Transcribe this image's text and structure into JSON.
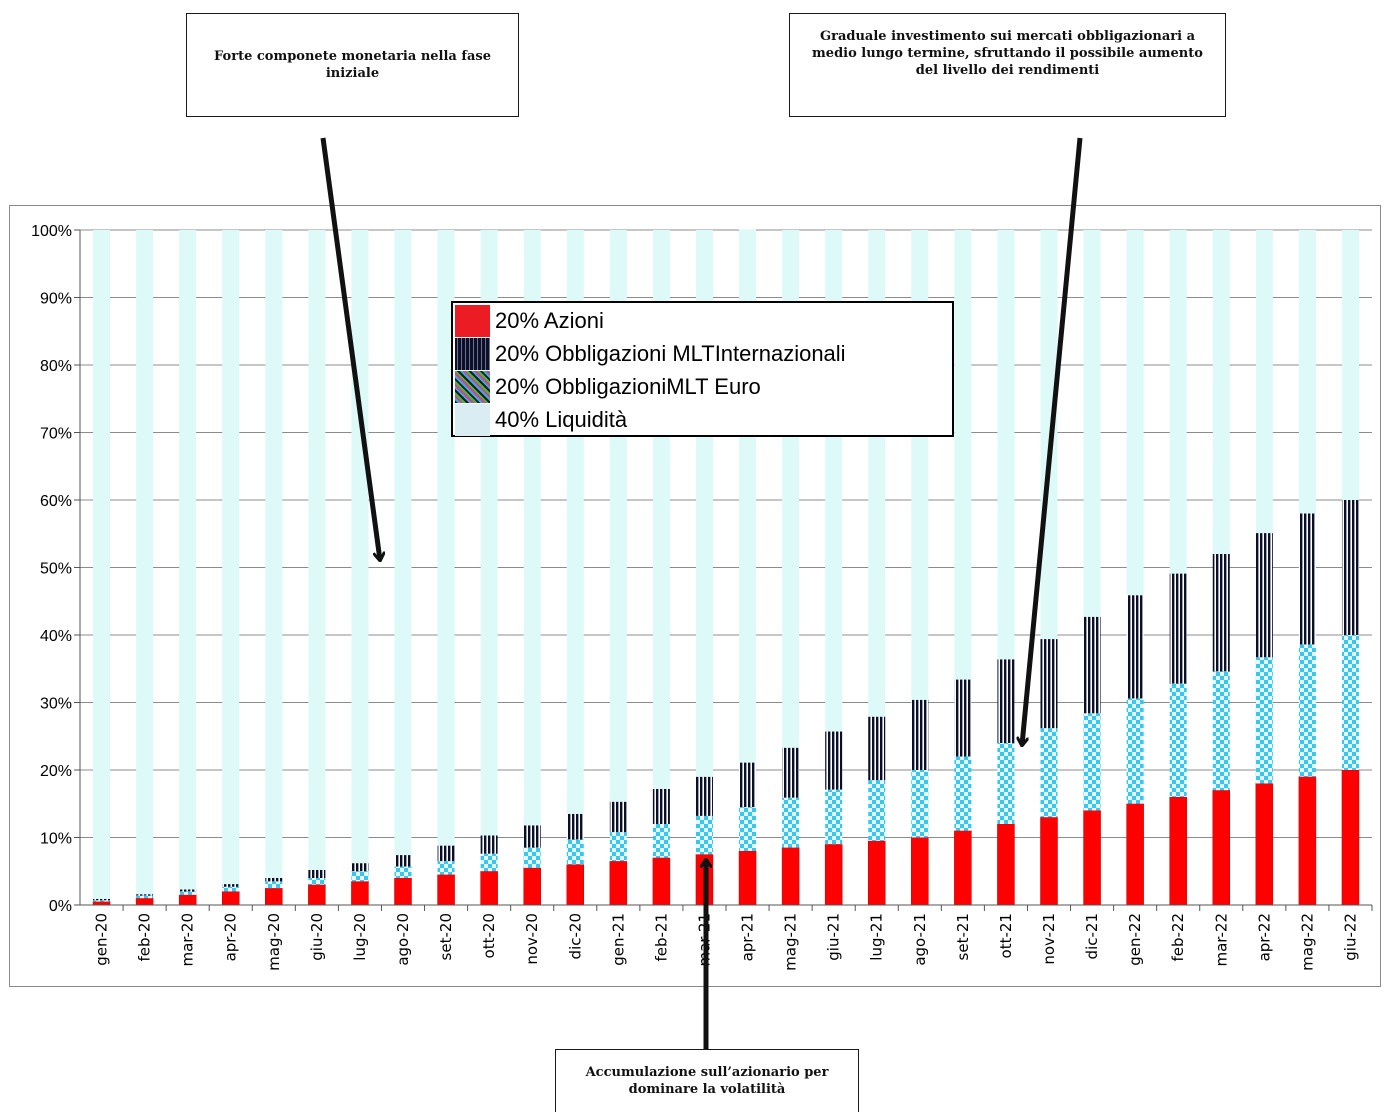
{
  "callouts": {
    "top_left": "Forte componete monetaria nella fase iniziale",
    "top_right": "Graduale investimento sui mercati obbligazionari a medio lungo termine, sfruttando il possibile aumento del livello dei rendimenti",
    "bottom": "Accumulazione sull’azionario per dominare la volatilità"
  },
  "colors": {
    "azioni": "#ff0000",
    "obbl_int": "#0b1029",
    "obbl_euro": "#35c8f0",
    "liquidita": "#ddf9f8",
    "grid": "#8c8c8c",
    "arrow": "#111111"
  },
  "chart_data": {
    "type": "bar",
    "stacked": true,
    "categories": [
      "gen-20",
      "feb-20",
      "mar-20",
      "apr-20",
      "mag-20",
      "giu-20",
      "lug-20",
      "ago-20",
      "set-20",
      "ott-20",
      "nov-20",
      "dic-20",
      "gen-21",
      "feb-21",
      "mar-21",
      "apr-21",
      "mag-21",
      "giu-21",
      "lug-21",
      "ago-21",
      "set-21",
      "ott-21",
      "nov-21",
      "dic-21",
      "gen-22",
      "feb-22",
      "mar-22",
      "apr-22",
      "mag-22",
      "giu-22"
    ],
    "series": [
      {
        "name": "20% Azioni",
        "pattern": "solid",
        "values": [
          0.5,
          1,
          1.5,
          2,
          2.5,
          3,
          3.5,
          4,
          4.5,
          5,
          5.5,
          6,
          6.5,
          7,
          7.5,
          8,
          8.5,
          9,
          9.5,
          10,
          11,
          12,
          13,
          14,
          15,
          16,
          17,
          18,
          19,
          20
        ]
      },
      {
        "name": "20% ObbligazioniMLT Euro",
        "pattern": "checker",
        "values": [
          0.2,
          0.4,
          0.5,
          0.7,
          1,
          1,
          1.5,
          1.7,
          2,
          2.6,
          3,
          3.7,
          4.3,
          5,
          5.7,
          6.5,
          7.4,
          8.1,
          9,
          10,
          11,
          12,
          13.2,
          14.4,
          15.6,
          16.8,
          17.6,
          18.7,
          19.6,
          20
        ]
      },
      {
        "name": "20% Obbligazioni MLTInternazionali",
        "pattern": "vstripe",
        "values": [
          0.2,
          0.2,
          0.3,
          0.4,
          0.5,
          1.2,
          1.2,
          1.7,
          2.3,
          2.7,
          3.3,
          3.8,
          4.5,
          5.2,
          5.8,
          6.6,
          7.4,
          8.6,
          9.4,
          10.4,
          11.4,
          12.4,
          13.2,
          14.3,
          15.3,
          16.3,
          17.4,
          18.4,
          19.4,
          20
        ]
      },
      {
        "name": "40% Liquidità",
        "pattern": "solid",
        "values": [
          99.1,
          98.4,
          97.7,
          96.9,
          96,
          94.8,
          93.8,
          92.6,
          91.2,
          89.7,
          88.2,
          86.5,
          84.7,
          82.8,
          81,
          79,
          76.7,
          74.3,
          72.1,
          69.6,
          66.6,
          63.6,
          60.6,
          57.3,
          54.1,
          50.9,
          48,
          44.9,
          42,
          40
        ]
      }
    ],
    "ylim": [
      0,
      100
    ],
    "yticks": [
      "0%",
      "10%",
      "20%",
      "30%",
      "40%",
      "50%",
      "60%",
      "70%",
      "80%",
      "90%",
      "100%"
    ],
    "grid": true
  },
  "legend": [
    {
      "label": "20% Azioni",
      "series": 0
    },
    {
      "label": "20% Obbligazioni MLTInternazionali",
      "series": 2
    },
    {
      "label": "20% ObbligazioniMLT Euro",
      "series": 1
    },
    {
      "label": "40% Liquidità",
      "series": 3
    }
  ]
}
